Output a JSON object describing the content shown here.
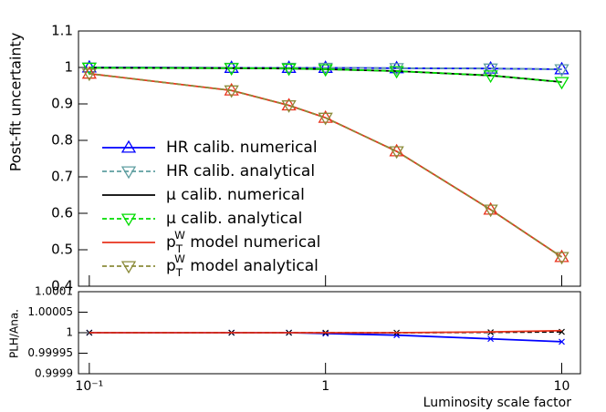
{
  "chart_data": [
    {
      "type": "line",
      "ylabel": "Post-fit uncertainty",
      "log_x": true,
      "xlim": [
        0.09,
        12
      ],
      "ylim": [
        0.4,
        1.1
      ],
      "yticks": [
        0.4,
        0.5,
        0.6,
        0.7,
        0.8,
        0.9,
        1,
        1.1
      ],
      "legend": "lower left",
      "x": [
        0.1,
        0.4,
        0.7,
        1,
        2,
        5,
        10
      ],
      "series": [
        {
          "name": "HR calib. numerical",
          "color": "#0000ff",
          "dash": false,
          "marker": "triangle-up",
          "values": [
            1.0,
            0.999,
            0.999,
            0.999,
            0.998,
            0.997,
            0.995
          ]
        },
        {
          "name": "HR calib. analytical",
          "color": "#5f9ea0",
          "dash": true,
          "marker": "triangle-down",
          "values": [
            1.0,
            0.999,
            0.999,
            0.999,
            0.998,
            0.997,
            0.995
          ]
        },
        {
          "name": "μ calib. numerical",
          "color": "#000000",
          "dash": false,
          "marker": "none",
          "values": [
            0.999,
            0.998,
            0.997,
            0.995,
            0.99,
            0.978,
            0.96
          ]
        },
        {
          "name": "μ calib. analytical",
          "color": "#00dd00",
          "dash": true,
          "marker": "triangle-down",
          "values": [
            0.999,
            0.998,
            0.997,
            0.995,
            0.99,
            0.978,
            0.96
          ]
        },
        {
          "name": "p_T^W model numerical",
          "color": "#e8331c",
          "dash": false,
          "marker": "triangle-up",
          "values": [
            0.983,
            0.937,
            0.896,
            0.862,
            0.77,
            0.61,
            0.48
          ]
        },
        {
          "name": "p_T^W model analytical",
          "color": "#8b8b3a",
          "dash": true,
          "marker": "triangle-down",
          "values": [
            0.983,
            0.937,
            0.896,
            0.862,
            0.77,
            0.61,
            0.48
          ]
        }
      ]
    },
    {
      "type": "line",
      "ylabel": "PLH/Ana.",
      "xlabel": "Luminosity scale factor",
      "log_x": true,
      "xlim": [
        0.09,
        12
      ],
      "ylim": [
        0.9999,
        1.0001
      ],
      "yticks": [
        0.9999,
        0.99995,
        1,
        1.00005,
        1.0001
      ],
      "xticks": [
        {
          "value": 0.1,
          "label": "10⁻¹"
        },
        1,
        10
      ],
      "x": [
        0.1,
        0.4,
        0.7,
        1,
        2,
        5,
        10
      ],
      "series": [
        {
          "color": "#0000ff",
          "dash": false,
          "marker": "x",
          "values": [
            1,
            1,
            1,
            0.999998,
            0.999994,
            0.999985,
            0.999978
          ]
        },
        {
          "color": "#000000",
          "dash": true,
          "marker": "x",
          "values": [
            1,
            1,
            1,
            1,
            1,
            1.000001,
            1.000002
          ]
        },
        {
          "color": "#e8331c",
          "dash": false,
          "marker": "none",
          "values": [
            1,
            1,
            1,
            1,
            1,
            1.000002,
            1.000005
          ]
        }
      ]
    }
  ]
}
